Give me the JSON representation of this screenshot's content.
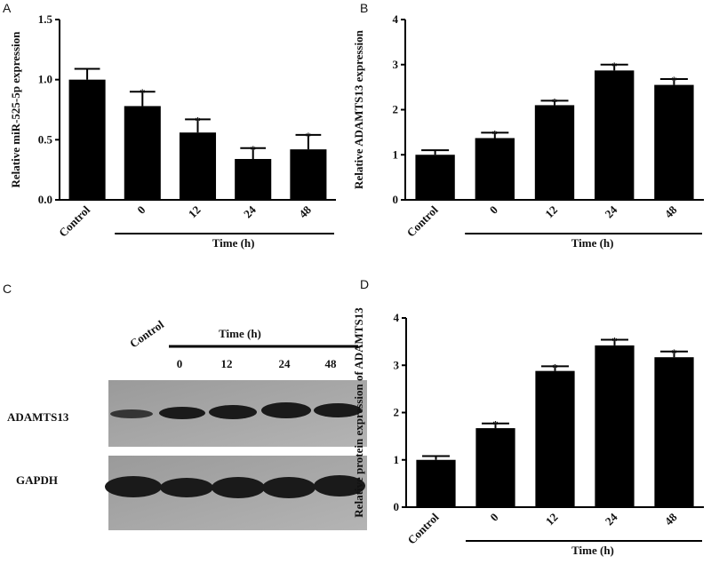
{
  "chart_data": [
    {
      "type": "bar",
      "panel": "A",
      "ylabel": "Relative miR-525-5p expression",
      "xlabel": "Time (h)",
      "categories": [
        "Control",
        "0",
        "12",
        "24",
        "48"
      ],
      "values": [
        1.0,
        0.78,
        0.56,
        0.34,
        0.42
      ],
      "errors": [
        0.09,
        0.12,
        0.11,
        0.09,
        0.12
      ],
      "significance": [
        null,
        "*",
        "*",
        "*",
        "*"
      ],
      "color": "#000000",
      "ylim": [
        0,
        1.5
      ],
      "yticks": [
        {
          "value": 0,
          "label": "0.0"
        },
        0.5,
        {
          "value": 1,
          "label": "1.0"
        },
        1.5
      ]
    },
    {
      "type": "bar",
      "panel": "B",
      "ylabel": "Relative ADAMTS13 expression",
      "xlabel": "Time (h)",
      "categories": [
        "Control",
        "0",
        "12",
        "24",
        "48"
      ],
      "values": [
        1.0,
        1.37,
        2.1,
        2.87,
        2.55
      ],
      "errors": [
        0.1,
        0.12,
        0.1,
        0.13,
        0.13
      ],
      "significance": [
        null,
        "*",
        "*",
        "*",
        "*"
      ],
      "color": "#000000",
      "ylim": [
        0,
        4
      ],
      "yticks": [
        0,
        1,
        2,
        3,
        4
      ]
    },
    {
      "type": "bar",
      "panel": "D",
      "ylabel": "Relative protein expression of ADAMTS13",
      "xlabel": "Time (h)",
      "categories": [
        "Control",
        "0",
        "12",
        "24",
        "48"
      ],
      "values": [
        1.0,
        1.67,
        2.88,
        3.42,
        3.17
      ],
      "errors": [
        0.08,
        0.1,
        0.1,
        0.12,
        0.12
      ],
      "significance": [
        null,
        "*",
        "*",
        "*",
        "*"
      ],
      "color": "#000000",
      "ylim": [
        0,
        4
      ],
      "yticks": [
        0,
        1,
        2,
        3,
        4
      ]
    }
  ],
  "blot": {
    "panel": "C",
    "control": "Control",
    "time_label": "Time (h)",
    "lanes": [
      "0",
      "12",
      "24",
      "48"
    ],
    "rows": [
      "ADAMTS13",
      "GAPDH"
    ]
  }
}
